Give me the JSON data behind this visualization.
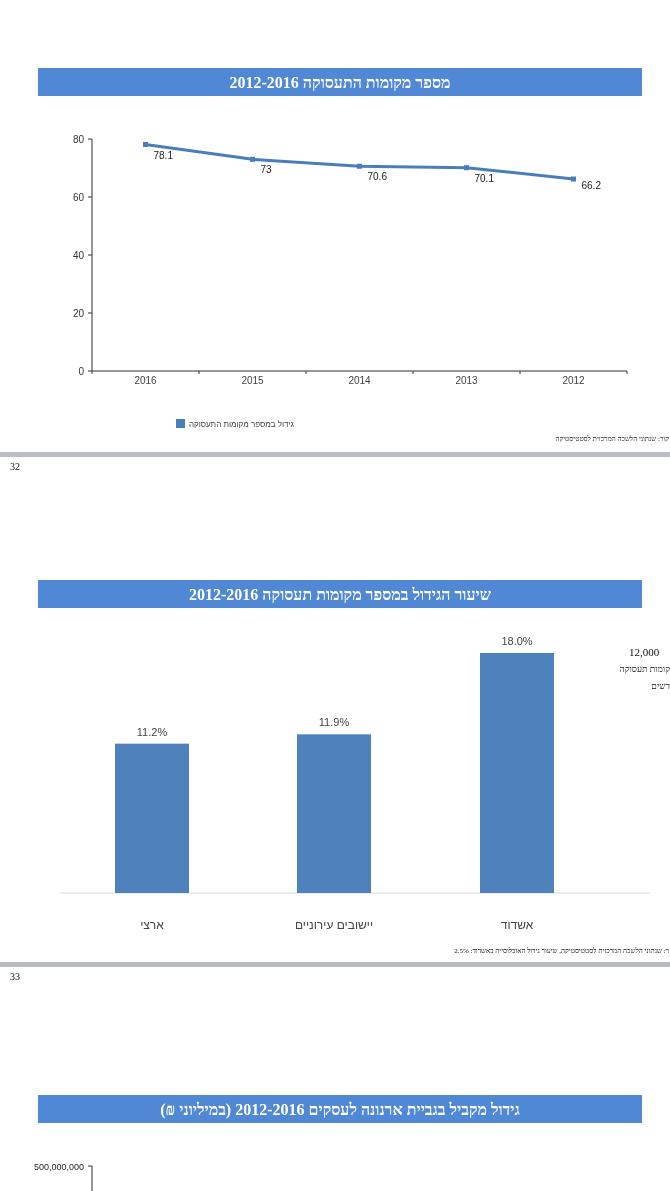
{
  "chart_data": [
    {
      "type": "line",
      "title": "מספר מקומות התעסוקה 2012-2016",
      "categories": [
        "2016",
        "2015",
        "2014",
        "2013",
        "2012"
      ],
      "series": [
        {
          "name": "גידול במספר מקומות התעסוקה",
          "color": "#4a7ebb",
          "values": [
            78.1,
            73,
            70.6,
            70.1,
            66.2
          ]
        }
      ],
      "ylim": [
        0,
        80
      ],
      "yticks": [
        0,
        20,
        40,
        60,
        80
      ],
      "data_labels": true,
      "legend": "bottom",
      "marker": "square",
      "annotations": [
        "קור: שנתוני הלשכה המרכזית לסטטיסטיקה"
      ]
    },
    {
      "type": "bar",
      "title": "שיעור הגידול במספר מקומות תעסוקה 2012-2016",
      "categories": [
        "ארצי",
        "יישובים עירוניים",
        "אשדוד"
      ],
      "values": [
        11.2,
        11.9,
        18.0
      ],
      "value_labels": [
        "11.2%",
        "11.9%",
        "18.0%"
      ],
      "color": "#4f81bd",
      "tick_labels": "x",
      "annotations": [
        "32",
        "12,000",
        "קומות תעסוקה",
        "דשים",
        "ר: שנתוני הלשכה המרכזית לסטטיסטיקה, שיעור גידול האוכלוסייה באשדוד: 2.5%"
      ]
    },
    {
      "type": "other",
      "title": "גידול מקביל בגביית ארנונה לעסקים 2012-2016 (במיליוני ₪)",
      "annotations": [
        "33",
        "500,000,000"
      ]
    }
  ]
}
